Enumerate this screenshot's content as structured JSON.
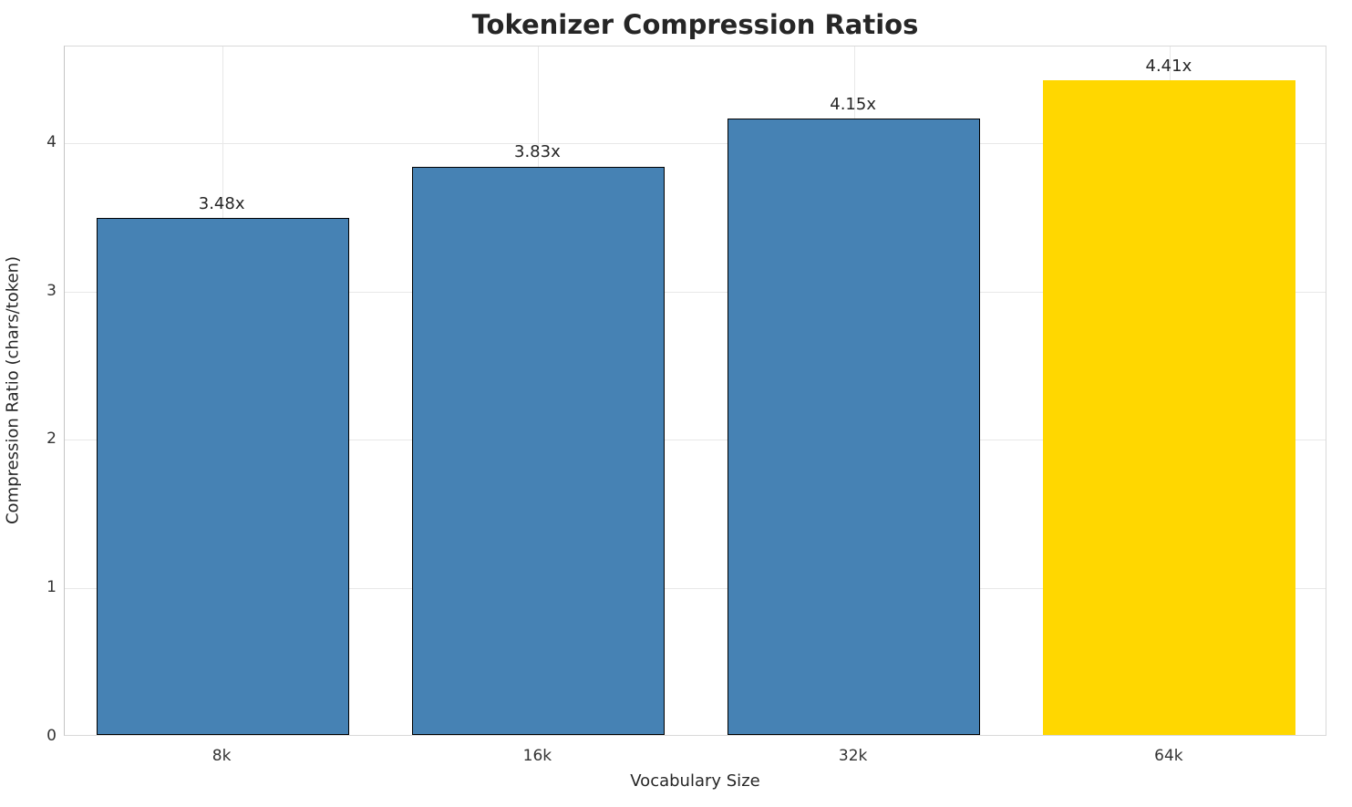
{
  "chart_data": {
    "type": "bar",
    "title": "Tokenizer Compression Ratios",
    "xlabel": "Vocabulary Size",
    "ylabel": "Compression Ratio (chars/token)",
    "categories": [
      "8k",
      "16k",
      "32k",
      "64k"
    ],
    "values": [
      3.48,
      3.83,
      4.15,
      4.41
    ],
    "bar_labels": [
      "3.48x",
      "3.83x",
      "4.15x",
      "4.41x"
    ],
    "bar_colors": [
      "#4682B4",
      "#4682B4",
      "#4682B4",
      "#FFD700"
    ],
    "bar_edge_colors": [
      "#000000",
      "#000000",
      "#000000",
      "#FFD700"
    ],
    "ylim": [
      0,
      4.65
    ],
    "yticks": [
      0,
      1,
      2,
      3,
      4
    ],
    "grid": true,
    "legend": "none",
    "bar_width_fraction": 0.8,
    "colors": {
      "default_bar": "#4682B4",
      "highlight_bar": "#FFD700",
      "grid": "#e8e8e8",
      "text": "#262626"
    }
  }
}
